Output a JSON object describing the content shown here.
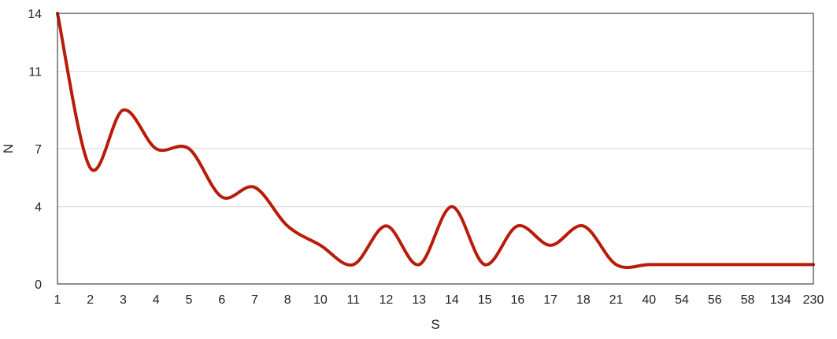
{
  "chart_data": {
    "type": "line",
    "xlabel": "S",
    "ylabel": "N",
    "categories": [
      "1",
      "2",
      "3",
      "4",
      "5",
      "6",
      "7",
      "8",
      "10",
      "11",
      "12",
      "13",
      "14",
      "15",
      "16",
      "17",
      "18",
      "21",
      "40",
      "54",
      "56",
      "58",
      "134",
      "230"
    ],
    "series": [
      {
        "values": [
          14,
          6,
          9,
          7,
          7,
          4.5,
          5,
          3,
          2,
          1,
          3,
          1,
          4,
          1,
          3,
          2,
          3,
          1,
          1,
          1,
          1,
          1,
          1,
          1
        ]
      }
    ],
    "ylim": [
      0,
      14
    ],
    "yticks": [
      "0",
      "4",
      "7",
      "11",
      "14"
    ],
    "grid": true,
    "line_color": "#b81c0a"
  }
}
